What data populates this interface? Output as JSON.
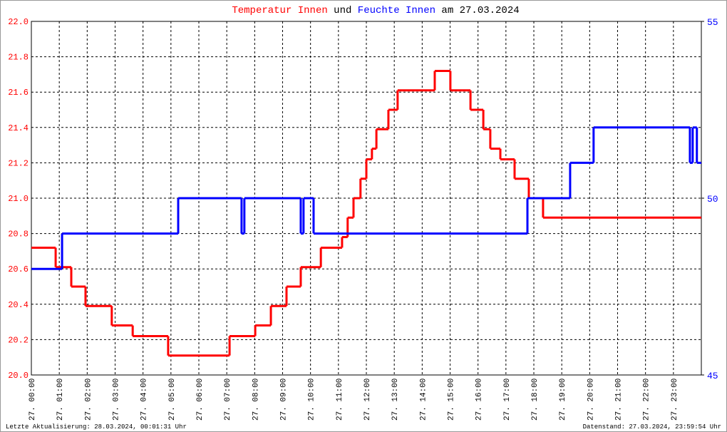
{
  "chart_data": {
    "type": "step-line",
    "title_date": "am 27.03.2024",
    "title_connector": "und",
    "title_color": "#000000",
    "footer_left": "Letzte Aktualisierung: 28.03.2024, 00:01:31 Uhr",
    "footer_right": "Datenstand: 27.03.2024, 23:59:54 Uhr",
    "grid": true,
    "xlim": [
      0,
      24
    ],
    "xticks": [
      {
        "value": 0,
        "label": "27. 00:00"
      },
      {
        "value": 1,
        "label": "27. 01:00"
      },
      {
        "value": 2,
        "label": "27. 02:00"
      },
      {
        "value": 3,
        "label": "27. 03:00"
      },
      {
        "value": 4,
        "label": "27. 04:00"
      },
      {
        "value": 5,
        "label": "27. 05:00"
      },
      {
        "value": 6,
        "label": "27. 06:00"
      },
      {
        "value": 7,
        "label": "27. 07:00"
      },
      {
        "value": 8,
        "label": "27. 08:00"
      },
      {
        "value": 9,
        "label": "27. 09:00"
      },
      {
        "value": 10,
        "label": "27. 10:00"
      },
      {
        "value": 11,
        "label": "27. 11:00"
      },
      {
        "value": 12,
        "label": "27. 12:00"
      },
      {
        "value": 13,
        "label": "27. 13:00"
      },
      {
        "value": 14,
        "label": "27. 14:00"
      },
      {
        "value": 15,
        "label": "27. 15:00"
      },
      {
        "value": 16,
        "label": "27. 16:00"
      },
      {
        "value": 17,
        "label": "27. 17:00"
      },
      {
        "value": 18,
        "label": "27. 18:00"
      },
      {
        "value": 19,
        "label": "27. 19:00"
      },
      {
        "value": 20,
        "label": "27. 20:00"
      },
      {
        "value": 21,
        "label": "27. 21:00"
      },
      {
        "value": 22,
        "label": "27. 22:00"
      },
      {
        "value": 23,
        "label": "27. 23:00"
      }
    ],
    "ylim": [
      20,
      22
    ],
    "yticks": [
      {
        "value": 20,
        "label": "20.0"
      },
      20.2,
      20.4,
      20.6,
      20.8,
      {
        "value": 21,
        "label": "21.0"
      },
      21.2,
      21.4,
      21.6,
      21.8,
      {
        "value": 22,
        "label": "22.0"
      }
    ],
    "y_tick_color": "#ff0000",
    "y2lim": [
      45,
      55
    ],
    "y2ticks": [
      45,
      50,
      55
    ],
    "y2_tick_color": "#0000ff",
    "series": [
      {
        "name": "Temperatur Innen",
        "color": "#ff0000",
        "axis": "y",
        "x": [
          0,
          0.87,
          1.43,
          1.94,
          2.88,
          3.63,
          4.9,
          7.1,
          8.02,
          8.58,
          9.14,
          9.65,
          10.37,
          11.13,
          11.33,
          11.54,
          11.79,
          12.0,
          12.2,
          12.36,
          12.79,
          13.12,
          14.45,
          15.01,
          15.73,
          16.19,
          16.44,
          16.8,
          17.31,
          17.82,
          18.33
        ],
        "values": [
          20.72,
          20.61,
          20.5,
          20.39,
          20.28,
          20.22,
          20.11,
          20.22,
          20.28,
          20.39,
          20.5,
          20.61,
          20.72,
          20.78,
          20.89,
          21.0,
          21.11,
          21.22,
          21.28,
          21.39,
          21.5,
          21.61,
          21.72,
          21.61,
          21.5,
          21.39,
          21.28,
          21.22,
          21.11,
          21.0,
          20.89
        ]
      },
      {
        "name": "Feuchte Innen",
        "color": "#0000ff",
        "axis": "y2",
        "x": [
          0,
          1.1,
          5.26,
          7.53,
          7.63,
          9.65,
          9.75,
          10.11,
          17.77,
          19.3,
          20.14,
          23.59,
          23.69,
          23.84
        ],
        "values": [
          48,
          49,
          50,
          49,
          50,
          49,
          50,
          49,
          50,
          51,
          52,
          51,
          52,
          51
        ]
      }
    ]
  }
}
